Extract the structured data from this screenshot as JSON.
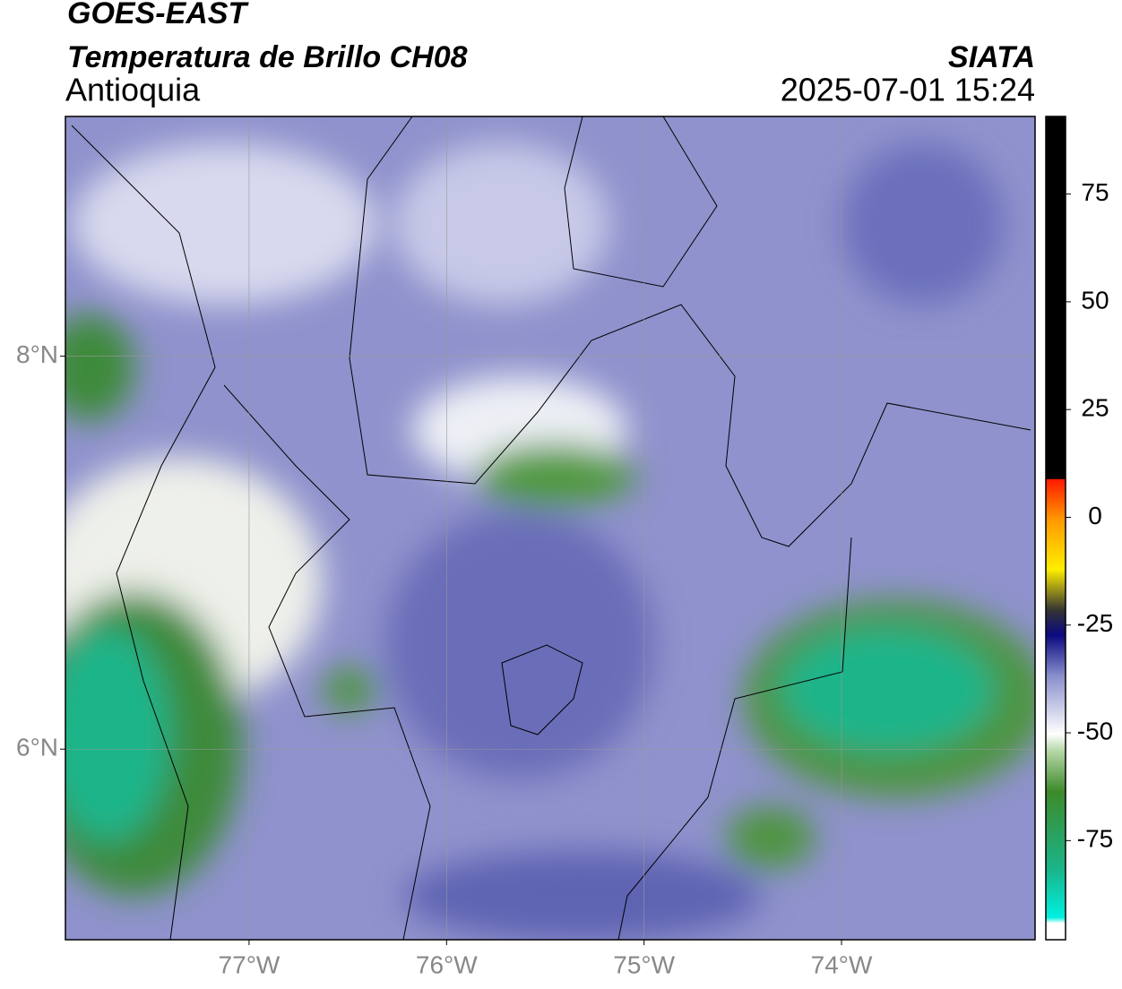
{
  "header": {
    "satellite": "GOES-EAST",
    "product": "Temperatura de Brillo CH08",
    "region": "Antioquia",
    "source": "SIATA",
    "timestamp": "2025-07-01 15:24"
  },
  "map": {
    "lon_range": [
      -77.93,
      -73.02
    ],
    "lat_range": [
      5.03,
      9.22
    ],
    "lon_ticks": [
      {
        "value": -77,
        "label": "77°W"
      },
      {
        "value": -76,
        "label": "76°W"
      },
      {
        "value": -75,
        "label": "75°W"
      },
      {
        "value": -74,
        "label": "74°W"
      }
    ],
    "lat_ticks": [
      {
        "value": 8,
        "label": "8°N"
      },
      {
        "value": 6,
        "label": "6°N"
      }
    ]
  },
  "colorbar": {
    "range": [
      -98,
      93
    ],
    "ticks": [
      75,
      50,
      25,
      0,
      -25,
      -50,
      -75
    ]
  }
}
